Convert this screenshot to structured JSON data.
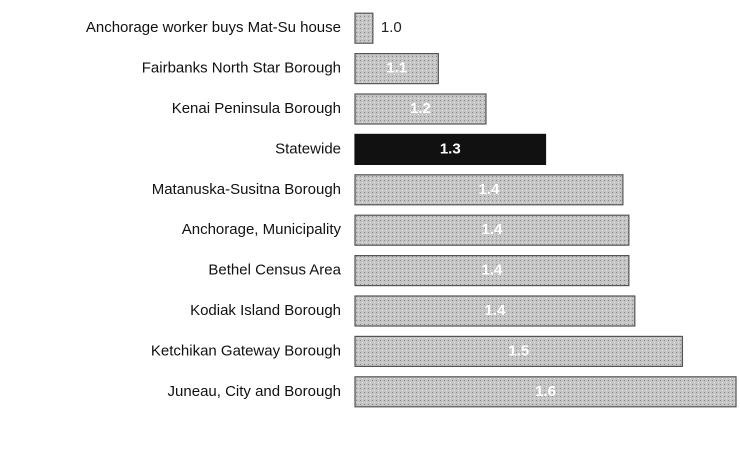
{
  "chart_data": {
    "type": "hbar",
    "categories": [
      "Anchorage worker buys Mat-Su house",
      "Fairbanks North Star Borough",
      "Kenai Peninsula Borough",
      "Statewide",
      "Matanuska-Susitna Borough",
      "Anchorage, Municipality",
      "Bethel Census Area",
      "Kodiak Island Borough",
      "Ketchikan Gateway Borough",
      "Juneau, City and Borough"
    ],
    "values": [
      1.0,
      1.11,
      1.19,
      1.29,
      1.42,
      1.43,
      1.43,
      1.44,
      1.52,
      1.61
    ],
    "value_labels": [
      "1.0",
      "1.1",
      "1.2",
      "1.3",
      "1.4",
      "1.4",
      "1.4",
      "1.4",
      "1.5",
      "1.6"
    ],
    "colors": [
      "#b8b8b8",
      "#b8b8b8",
      "#b8b8b8",
      "#111111",
      "#b8b8b8",
      "#b8b8b8",
      "#b8b8b8",
      "#b8b8b8",
      "#b8b8b8",
      "#b8b8b8"
    ],
    "xlim": [
      0.97,
      1.615
    ]
  }
}
